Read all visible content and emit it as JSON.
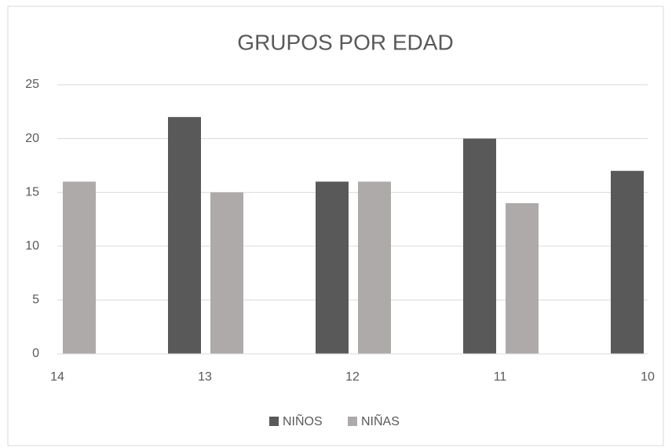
{
  "chart_data": {
    "type": "bar",
    "title": "GRUPOS  POR  EDAD",
    "x": [
      14,
      13,
      12,
      11,
      10
    ],
    "series": [
      {
        "name": "NIÑOS",
        "color": "#595959",
        "values": [
          null,
          22,
          16,
          20,
          17
        ]
      },
      {
        "name": "NIÑAS",
        "color": "#aeaaaa",
        "values": [
          16,
          15,
          16,
          14,
          null
        ]
      }
    ],
    "xlim": [
      14,
      10
    ],
    "xticks": [
      14,
      13,
      12,
      11,
      10
    ],
    "ylim": [
      0,
      25
    ],
    "yticks": [
      0,
      5,
      10,
      15,
      20,
      25
    ],
    "grid": true,
    "legend": "bottom"
  }
}
